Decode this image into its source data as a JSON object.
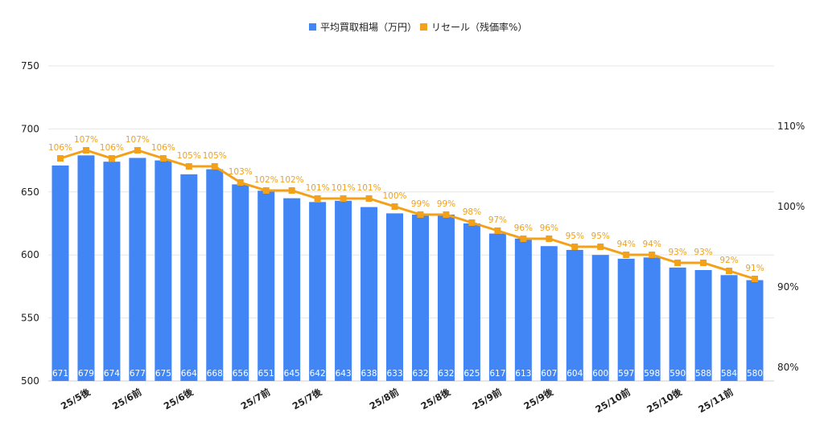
{
  "chart_data": {
    "type": "bar+line",
    "categories": [
      "",
      "25/5後",
      "",
      "25/6前",
      "",
      "25/6後",
      "",
      "",
      "25/7前",
      "",
      "25/7後",
      "",
      "",
      "25/8前",
      "",
      "25/8後",
      "",
      "25/9前",
      "",
      "25/9後",
      "",
      "",
      "25/10前",
      "",
      "25/10後",
      "",
      "25/11前",
      ""
    ],
    "series": [
      {
        "name": "平均買取相場（万円）",
        "type": "bar",
        "axis": "left",
        "color": "#4285f4",
        "values": [
          671,
          679,
          674,
          677,
          675,
          664,
          668,
          656,
          651,
          645,
          642,
          643,
          638,
          633,
          632,
          632,
          625,
          617,
          613,
          607,
          604,
          600,
          597,
          598,
          590,
          588,
          584,
          580
        ]
      },
      {
        "name": "リセール（残価率%）",
        "type": "line",
        "axis": "right",
        "color": "#f4a11a",
        "values": [
          106,
          107,
          106,
          107,
          106,
          105,
          105,
          103,
          102,
          102,
          101,
          101,
          101,
          100,
          99,
          99,
          98,
          97,
          96,
          96,
          95,
          95,
          94,
          94,
          93,
          93,
          92,
          91
        ]
      }
    ],
    "left_axis": {
      "ticks": [
        "500",
        "550",
        "600",
        "650",
        "700",
        "750"
      ],
      "range": [
        500,
        750
      ]
    },
    "right_axis": {
      "ticks": [
        "80%",
        "90%",
        "100%",
        "110%"
      ]
    },
    "legend": "top",
    "grid": true
  }
}
